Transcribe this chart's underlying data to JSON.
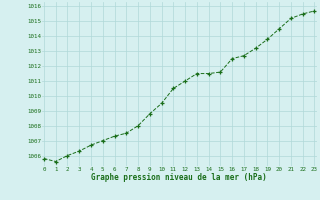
{
  "x": [
    0,
    1,
    2,
    3,
    4,
    5,
    6,
    7,
    8,
    9,
    10,
    11,
    12,
    13,
    14,
    15,
    16,
    17,
    18,
    19,
    20,
    21,
    22,
    23
  ],
  "y": [
    1005.8,
    1005.6,
    1006.0,
    1006.3,
    1006.7,
    1007.0,
    1007.3,
    1007.5,
    1008.0,
    1008.8,
    1009.5,
    1010.5,
    1011.0,
    1011.5,
    1011.5,
    1011.6,
    1012.5,
    1012.7,
    1013.2,
    1013.8,
    1014.5,
    1015.2,
    1015.5,
    1015.7
  ],
  "line_color": "#1a6e1a",
  "marker_color": "#1a6e1a",
  "bg_color": "#d6f0f0",
  "grid_color": "#b0d8d8",
  "xlabel": "Graphe pression niveau de la mer (hPa)",
  "xlabel_color": "#1a6e1a",
  "tick_color": "#1a6e1a",
  "ylim": [
    1005.3,
    1016.3
  ],
  "yticks": [
    1006,
    1007,
    1008,
    1009,
    1010,
    1011,
    1012,
    1013,
    1014,
    1015,
    1016
  ],
  "xticks": [
    0,
    1,
    2,
    3,
    4,
    5,
    6,
    7,
    8,
    9,
    10,
    11,
    12,
    13,
    14,
    15,
    16,
    17,
    18,
    19,
    20,
    21,
    22,
    23
  ],
  "xlim": [
    -0.2,
    23.2
  ]
}
